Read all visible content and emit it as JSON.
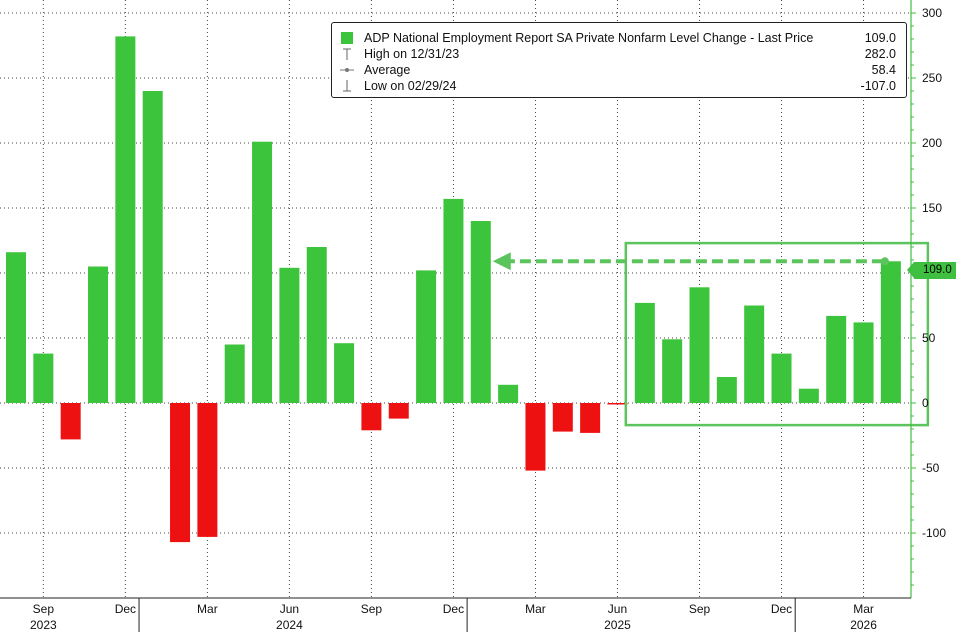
{
  "chart_data": {
    "type": "bar",
    "title": "ADP National Employment Report SA Private Nonfarm Level Change",
    "ylim": [
      -150,
      310
    ],
    "yticks": [
      -100,
      -50,
      0,
      50,
      100,
      150,
      200,
      250,
      300
    ],
    "ytick_labels": [
      "-100",
      "-50",
      "0",
      "50",
      "100",
      "150",
      "200",
      "250",
      "300"
    ],
    "axis_side": "right",
    "grid": true,
    "positive_color": "#3cc43c",
    "negative_color": "#ee1111",
    "series": [
      {
        "values": [
          116,
          38,
          -28,
          105,
          282,
          240,
          -107,
          -103,
          45,
          201,
          104,
          120,
          46,
          -21,
          -12,
          102,
          157,
          140,
          14,
          -52,
          -22,
          -23,
          -1,
          77,
          49,
          89,
          20,
          75,
          38,
          11,
          67,
          62,
          109
        ]
      }
    ],
    "month_ticks": [
      "Sep",
      "Dec",
      "Mar",
      "Jun",
      "Sep",
      "Dec",
      "Mar",
      "Jun",
      "Sep",
      "Dec",
      "Mar"
    ],
    "month_tick_index": [
      1,
      4,
      7,
      10,
      13,
      16,
      19,
      22,
      25,
      28,
      31
    ],
    "year_labels": [
      "2023",
      "2024",
      "2025",
      "2026"
    ],
    "year_label_index": [
      1,
      10,
      22,
      31
    ],
    "year_separator_index": [
      4.5,
      16.5,
      28.5
    ],
    "legend": {
      "placement": "top-right",
      "rows": [
        {
          "label": "ADP National Employment Report SA Private Nonfarm Level Change - Last Price",
          "value": "109.0"
        },
        {
          "label": "High on 12/31/23",
          "value": "282.0"
        },
        {
          "label": "Average",
          "value": "58.4"
        },
        {
          "label": "Low on 02/29/24",
          "value": "-107.0"
        }
      ]
    },
    "last_value_label": "109.0",
    "annotation": {
      "arrow_from_index": 32,
      "arrow_to_index": 17,
      "arrow_level": 109,
      "box_from_index": 23,
      "box_to_index": 32,
      "box_ylim": [
        -17,
        123
      ],
      "color": "#5cc45c"
    }
  }
}
